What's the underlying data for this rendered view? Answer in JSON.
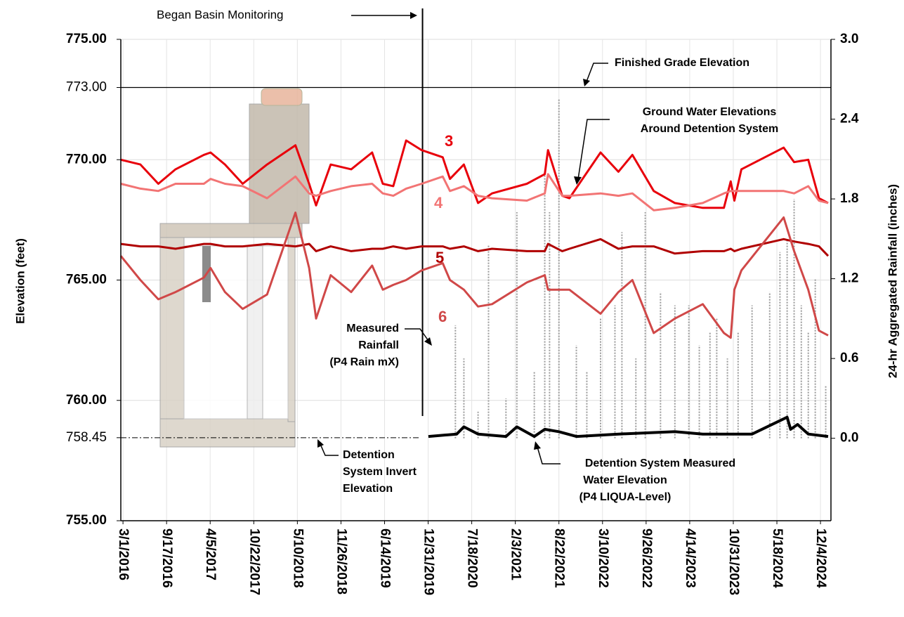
{
  "chart_data": {
    "type": "line",
    "y_label": "Elevation (feet)",
    "y2_label": "24-hr Aggregated Rainfall (inches)",
    "xlim": [
      "2016-02-20",
      "2025-01-21"
    ],
    "xticks": [
      {
        "value": "2016-03-01",
        "label": "3/1/2016"
      },
      {
        "value": "2016-09-17",
        "label": "9/17/2016"
      },
      {
        "value": "2017-04-05",
        "label": "4/5/2017"
      },
      {
        "value": "2017-10-22",
        "label": "10/22/2017"
      },
      {
        "value": "2018-05-10",
        "label": "5/10/2018"
      },
      {
        "value": "2018-11-26",
        "label": "11/26/2018"
      },
      {
        "value": "2019-06-14",
        "label": "6/14/2019"
      },
      {
        "value": "2019-12-31",
        "label": "12/31/2019"
      },
      {
        "value": "2020-07-18",
        "label": "7/18/2020"
      },
      {
        "value": "2021-02-03",
        "label": "2/3/2021"
      },
      {
        "value": "2021-08-22",
        "label": "8/22/2021"
      },
      {
        "value": "2022-03-10",
        "label": "3/10/2022"
      },
      {
        "value": "2022-09-26",
        "label": "9/26/2022"
      },
      {
        "value": "2023-04-14",
        "label": "4/14/2023"
      },
      {
        "value": "2023-10-31",
        "label": "10/31/2023"
      },
      {
        "value": "2024-05-18",
        "label": "5/18/2024"
      },
      {
        "value": "2024-12-04",
        "label": "12/4/2024"
      }
    ],
    "ylim": [
      755,
      775
    ],
    "yticks": [
      {
        "value": 755,
        "label": "755.00"
      },
      {
        "value": 758.45,
        "label": "758.45"
      },
      {
        "value": 760,
        "label": "760.00"
      },
      {
        "value": 765,
        "label": "765.00"
      },
      {
        "value": 770,
        "label": "770.00"
      },
      {
        "value": 773,
        "label": "773.00"
      },
      {
        "value": 775,
        "label": "775.00"
      }
    ],
    "y2lim": [
      -0.62,
      3.0
    ],
    "y2ticks": [
      {
        "value": 0,
        "label": "0.0"
      },
      0.6,
      1.2,
      1.8,
      2.4,
      {
        "value": 3,
        "label": "3.0"
      }
    ],
    "grid": true,
    "annotations": {
      "monitoring": "Began Basin Monitoring",
      "grade": "Finished Grade Elevation",
      "groundwater": [
        "Ground Water Elevations",
        "Around Detention System"
      ],
      "rainfall": [
        "Measured",
        "Rainfall",
        "(P4 Rain mX)"
      ],
      "invert": [
        "Detention",
        "System Invert",
        "Elevation"
      ],
      "water": [
        "Detention System Measured",
        "Water Elevation",
        "(P4 LIQUA-Level)"
      ]
    },
    "x": [
      "2016-02-20",
      "2016-05-20",
      "2016-08-10",
      "2016-10-28",
      "2017-03-07",
      "2017-04-07",
      "2017-06-12",
      "2017-09-01",
      "2017-12-22",
      "2018-05-01",
      "2018-07-03",
      "2018-08-04",
      "2018-10-10",
      "2019-01-12",
      "2019-04-18",
      "2019-06-06",
      "2019-07-24",
      "2019-09-21",
      "2019-12-01",
      "2020-03-07",
      "2020-04-09",
      "2020-06-12",
      "2020-08-16",
      "2020-10-19",
      "2021-03-28",
      "2021-06-18",
      "2021-07-03",
      "2021-09-06",
      "2021-10-09",
      "2022-03-01",
      "2022-05-22",
      "2022-07-25",
      "2022-10-31",
      "2023-02-05",
      "2023-06-13",
      "2023-09-18",
      "2023-10-19",
      "2023-11-05",
      "2023-12-07",
      "2024-06-18",
      "2024-08-05",
      "2024-10-09",
      "2024-11-27",
      "2025-01-08"
    ],
    "series": [
      {
        "name": "3",
        "color": "#e8000b",
        "values": [
          770.0,
          769.8,
          769.0,
          769.6,
          770.2,
          770.3,
          769.8,
          769.0,
          769.8,
          770.6,
          769.0,
          768.1,
          769.8,
          769.6,
          770.3,
          769.0,
          768.9,
          770.8,
          770.4,
          770.1,
          769.2,
          769.8,
          768.2,
          768.6,
          769.0,
          769.4,
          770.4,
          768.5,
          768.4,
          770.3,
          769.5,
          770.2,
          768.7,
          768.2,
          768.0,
          768.0,
          769.1,
          768.3,
          769.6,
          770.5,
          769.9,
          770.0,
          768.4,
          768.2
        ]
      },
      {
        "name": "4",
        "color": "#f27474",
        "values": [
          769.0,
          768.8,
          768.7,
          769.0,
          769.0,
          769.2,
          769.0,
          768.9,
          768.4,
          769.3,
          768.6,
          768.5,
          768.7,
          768.9,
          769.0,
          768.6,
          768.5,
          768.8,
          769.0,
          769.3,
          768.7,
          768.9,
          768.5,
          768.4,
          768.3,
          768.6,
          769.4,
          768.5,
          768.5,
          768.6,
          768.5,
          768.6,
          767.9,
          768.0,
          768.2,
          768.6,
          768.7,
          768.7,
          768.7,
          768.7,
          768.6,
          768.9,
          768.3,
          768.2
        ]
      },
      {
        "name": "5",
        "color": "#b00000",
        "values": [
          766.5,
          766.4,
          766.4,
          766.3,
          766.5,
          766.5,
          766.4,
          766.4,
          766.5,
          766.4,
          766.5,
          766.2,
          766.4,
          766.2,
          766.3,
          766.3,
          766.4,
          766.3,
          766.4,
          766.4,
          766.3,
          766.4,
          766.2,
          766.3,
          766.2,
          766.2,
          766.5,
          766.2,
          766.3,
          766.7,
          766.3,
          766.4,
          766.4,
          766.1,
          766.2,
          766.2,
          766.3,
          766.2,
          766.3,
          766.7,
          766.6,
          766.5,
          766.4,
          766.0
        ]
      },
      {
        "name": "6",
        "color": "#d04848",
        "values": [
          766.0,
          765.0,
          764.2,
          764.5,
          765.1,
          765.5,
          764.5,
          763.8,
          764.4,
          767.8,
          765.5,
          763.4,
          765.2,
          764.5,
          765.6,
          764.6,
          764.8,
          765.0,
          765.4,
          765.7,
          765.0,
          764.6,
          763.9,
          764.0,
          764.9,
          765.2,
          764.6,
          764.6,
          764.6,
          763.6,
          764.5,
          765.0,
          762.8,
          763.4,
          764.0,
          762.8,
          762.6,
          764.6,
          765.4,
          767.6,
          766.2,
          764.6,
          762.9,
          762.7
        ]
      },
      {
        "color": "#000000",
        "x": [
          "2020-01-01",
          "2020-05-10",
          "2020-06-12",
          "2020-08-16",
          "2020-12-22",
          "2021-02-10",
          "2021-05-01",
          "2021-06-18",
          "2021-08-22",
          "2021-11-10",
          "2022-05-22",
          "2023-02-05",
          "2023-06-13",
          "2024-01-25",
          "2024-07-04",
          "2024-07-20",
          "2024-08-21",
          "2024-10-09",
          "2025-01-08"
        ],
        "values": [
          758.5,
          758.6,
          758.9,
          758.6,
          758.5,
          758.9,
          758.5,
          758.8,
          758.7,
          758.5,
          758.6,
          758.7,
          758.6,
          758.6,
          759.3,
          758.8,
          759.0,
          758.6,
          758.5
        ]
      },
      {
        "color": "#999999",
        "axis": "y2",
        "x": [
          "2020-05-04",
          "2020-06-12",
          "2020-08-16",
          "2020-10-03",
          "2020-12-22",
          "2021-02-10",
          "2021-05-01",
          "2021-06-18",
          "2021-07-10",
          "2021-08-22",
          "2021-11-10",
          "2021-12-28",
          "2022-03-01",
          "2022-05-06",
          "2022-06-07",
          "2022-08-10",
          "2022-09-22",
          "2022-12-01",
          "2023-02-05",
          "2023-04-10",
          "2023-05-28",
          "2023-07-16",
          "2023-08-16",
          "2023-10-04",
          "2023-11-22",
          "2024-01-25",
          "2024-04-15",
          "2024-06-01",
          "2024-07-04",
          "2024-08-05",
          "2024-09-07",
          "2024-10-09",
          "2024-11-10",
          "2024-12-28"
        ],
        "values": [
          0.85,
          0.6,
          0.2,
          1.45,
          0.3,
          1.7,
          0.5,
          2.0,
          1.7,
          2.55,
          0.7,
          0.5,
          0.9,
          1.0,
          1.55,
          0.6,
          1.7,
          1.1,
          1.0,
          1.0,
          0.7,
          0.8,
          0.9,
          0.6,
          0.8,
          1.0,
          1.1,
          1.4,
          1.5,
          1.8,
          1.0,
          0.8,
          1.2,
          0.4
        ]
      }
    ]
  }
}
